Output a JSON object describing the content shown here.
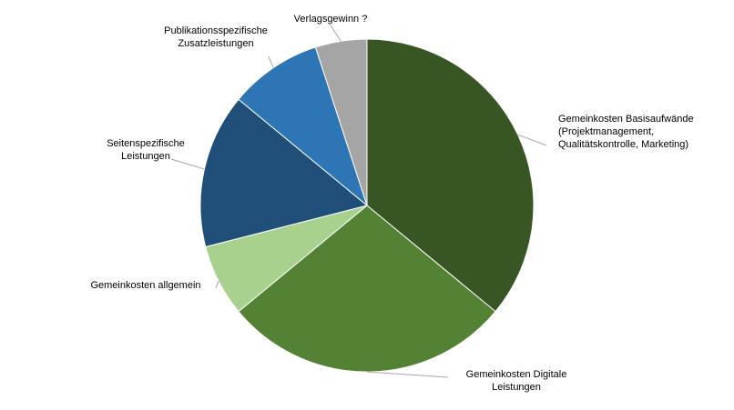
{
  "chart_data": {
    "type": "pie",
    "title": "",
    "start": "12 o'clock, clockwise",
    "legend": "none (callout labels)",
    "slices": [
      {
        "label": "Gemeinkosten Basisaufwände (Projektmanagement, Qualitätskontrolle, Marketing)",
        "lines": [
          "Gemeinkosten Basisaufwände",
          "(Projektmanagement,",
          "Qualitätskontrolle, Marketing)"
        ],
        "value": 36,
        "color": "#375623"
      },
      {
        "label": "Gemeinkosten Digitale Leistungen",
        "lines": [
          "Gemeinkosten Digitale",
          "Leistungen"
        ],
        "value": 28,
        "color": "#548235"
      },
      {
        "label": "Gemeinkosten allgemein",
        "lines": [
          "Gemeinkosten allgemein"
        ],
        "value": 7,
        "color": "#a9d18e"
      },
      {
        "label": "Seitenspezifische Leistungen",
        "lines": [
          "Seitenspezifische",
          "Leistungen"
        ],
        "value": 15,
        "color": "#1f4e79"
      },
      {
        "label": "Publikationsspezifische Zusatzleistungen",
        "lines": [
          "Publikationsspezifische",
          "Zusatzleistungen"
        ],
        "value": 9,
        "color": "#2e75b6"
      },
      {
        "label": "Verlagsgewinn ?",
        "lines": [
          "Verlagsgewinn ?"
        ],
        "value": 5,
        "color": "#a5a5a5"
      }
    ]
  }
}
